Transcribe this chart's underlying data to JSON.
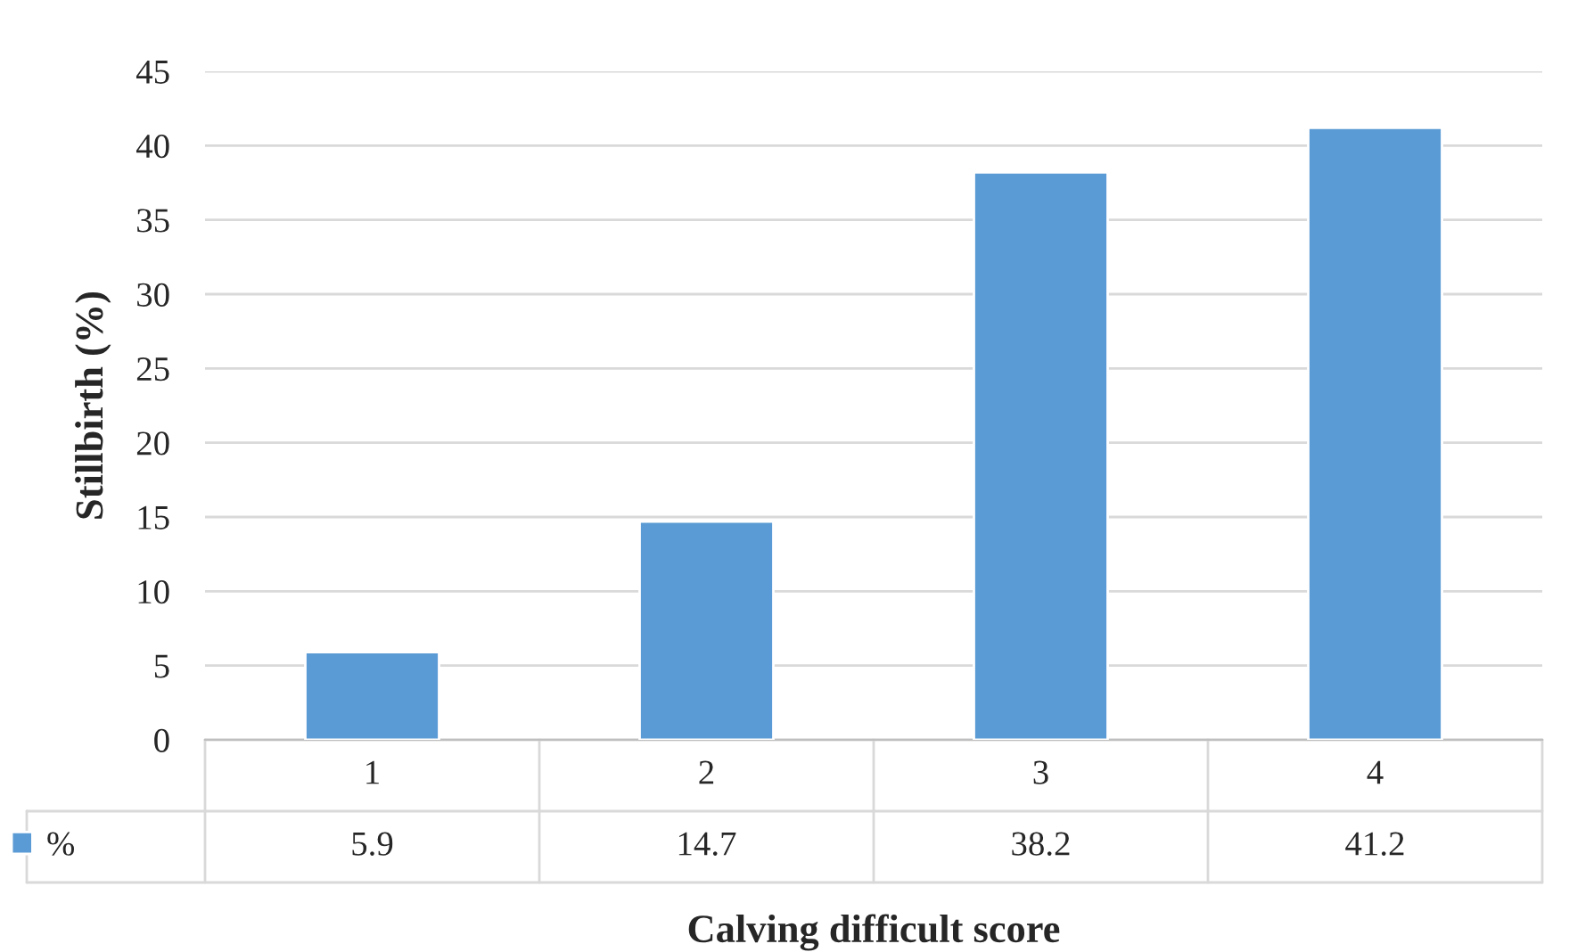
{
  "chart_data": {
    "type": "bar",
    "xlabel": "Calving difficult score",
    "ylabel": "Stillbirth (%)",
    "categories": [
      "1",
      "2",
      "3",
      "4"
    ],
    "series": [
      {
        "name": "%",
        "color": "#5b9bd5",
        "values": [
          5.9,
          14.7,
          38.2,
          41.2
        ]
      }
    ],
    "ylim": [
      0,
      45
    ],
    "yticks": [
      0,
      5,
      10,
      15,
      20,
      25,
      30,
      35,
      40,
      45
    ],
    "grid": "y",
    "data_labels": true,
    "legend": "bottom"
  }
}
